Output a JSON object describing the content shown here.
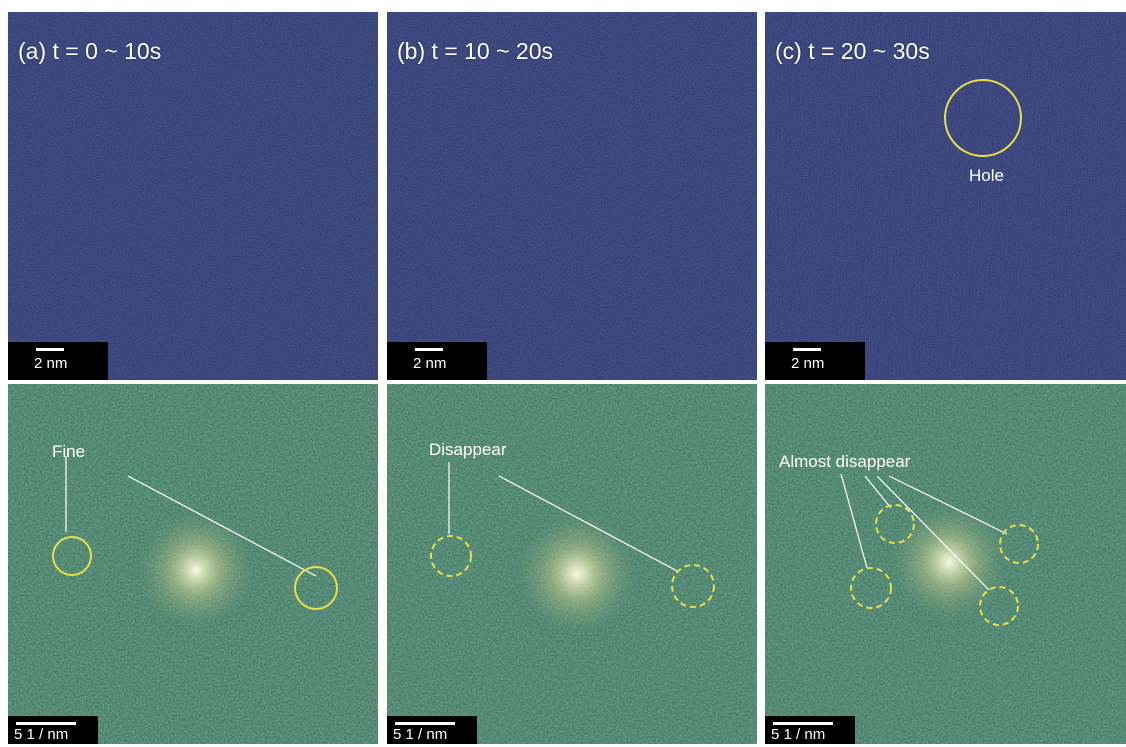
{
  "panels": [
    {
      "title": "(a) t = 0 ~ 10s",
      "annotation": ""
    },
    {
      "title": "(b) t = 10 ~ 20s",
      "annotation": ""
    },
    {
      "title": "(c) t = 20 ~ 30s",
      "annotation": "Hole"
    }
  ],
  "fft_panels": [
    {
      "annotation": "Fine",
      "circle_style": "solid"
    },
    {
      "annotation": "Disappear",
      "circle_style": "dashed"
    },
    {
      "annotation": "Almost disappear",
      "circle_style": "dashed"
    }
  ],
  "scalebars": {
    "real_space": "2 nm",
    "reciprocal": "5 1 / nm"
  },
  "colors": {
    "real_space_bg": "#1f2f6a",
    "fft_bg": "#2f6f5f",
    "marker": "#e8e04a",
    "label": "#ffffff"
  }
}
